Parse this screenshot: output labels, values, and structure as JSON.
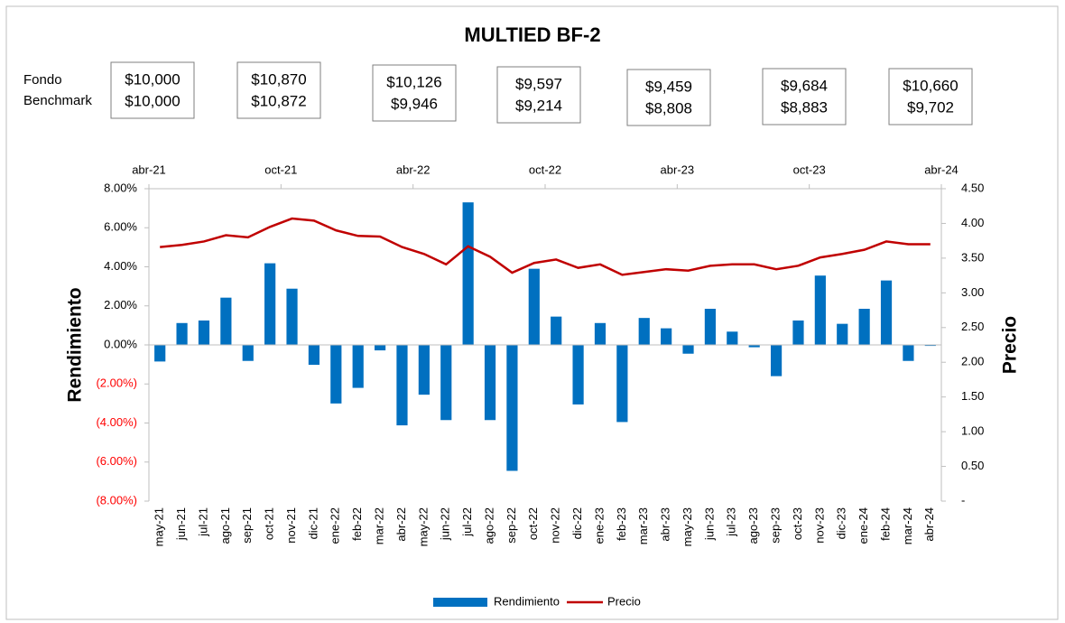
{
  "chart_data": {
    "type": "bar_line",
    "title": "MULTIED BF-2",
    "info_labels": {
      "fondo": "Fondo",
      "benchmark": "Benchmark"
    },
    "info_boxes": [
      {
        "fondo": "$10,000",
        "benchmark": "$10,000"
      },
      {
        "fondo": "$10,870",
        "benchmark": "$10,872"
      },
      {
        "fondo": "$10,126",
        "benchmark": "$9,946"
      },
      {
        "fondo": "$9,597",
        "benchmark": "$9,214"
      },
      {
        "fondo": "$9,459",
        "benchmark": "$8,808"
      },
      {
        "fondo": "$9,684",
        "benchmark": "$8,883"
      },
      {
        "fondo": "$10,660",
        "benchmark": "$9,702"
      }
    ],
    "top_axis_labels": [
      "abr-21",
      "oct-21",
      "abr-22",
      "oct-22",
      "abr-23",
      "oct-23",
      "abr-24"
    ],
    "categories": [
      "may-21",
      "jun-21",
      "jul-21",
      "ago-21",
      "sep-21",
      "oct-21",
      "nov-21",
      "dic-21",
      "ene-22",
      "feb-22",
      "mar-22",
      "abr-22",
      "may-22",
      "jun-22",
      "jul-22",
      "ago-22",
      "sep-22",
      "oct-22",
      "nov-22",
      "dic-22",
      "ene-23",
      "feb-23",
      "mar-23",
      "abr-23",
      "may-23",
      "jun-23",
      "jul-23",
      "ago-23",
      "sep-23",
      "oct-23",
      "nov-23",
      "dic-23",
      "ene-24",
      "feb-24",
      "mar-24",
      "abr-24"
    ],
    "series": [
      {
        "name": "Rendimiento",
        "type": "bar",
        "color": "#0070c0",
        "axis": "y",
        "values": [
          -0.85,
          1.12,
          1.25,
          2.42,
          -0.82,
          4.18,
          2.88,
          -1.02,
          -3.0,
          -2.2,
          -0.28,
          -4.12,
          -2.55,
          -3.85,
          7.3,
          -3.85,
          -6.45,
          3.9,
          1.45,
          -3.05,
          1.12,
          -3.95,
          1.38,
          0.85,
          -0.45,
          1.85,
          0.68,
          -0.12,
          -1.6,
          1.25,
          3.55,
          1.08,
          1.85,
          3.3,
          -0.82,
          -0.05
        ]
      },
      {
        "name": "Precio",
        "type": "line",
        "color": "#c00000",
        "axis": "y2",
        "values": [
          3.66,
          3.69,
          3.74,
          3.83,
          3.8,
          3.95,
          4.07,
          4.04,
          3.9,
          3.82,
          3.81,
          3.66,
          3.56,
          3.41,
          3.67,
          3.52,
          3.29,
          3.43,
          3.48,
          3.36,
          3.41,
          3.26,
          3.3,
          3.34,
          3.32,
          3.39,
          3.41,
          3.41,
          3.34,
          3.39,
          3.51,
          3.56,
          3.62,
          3.74,
          3.7,
          3.7
        ]
      }
    ],
    "ylabel": "Rendimiento",
    "y2label": "Precio",
    "ylim": [
      -8,
      8
    ],
    "yticks": [
      {
        "value": 8,
        "label": "8.00%"
      },
      {
        "value": 6,
        "label": "6.00%"
      },
      {
        "value": 4,
        "label": "4.00%"
      },
      {
        "value": 2,
        "label": "2.00%"
      },
      {
        "value": 0,
        "label": "0.00%"
      },
      {
        "value": -2,
        "label": "(2.00%)"
      },
      {
        "value": -4,
        "label": "(4.00%)"
      },
      {
        "value": -6,
        "label": "(6.00%)"
      },
      {
        "value": -8,
        "label": "(8.00%)"
      }
    ],
    "negative_tick_color": "#ff0000",
    "y2lim": [
      0,
      4.5
    ],
    "y2ticks": [
      {
        "value": 4.5,
        "label": "4.50"
      },
      {
        "value": 4,
        "label": "4.00"
      },
      {
        "value": 3.5,
        "label": "3.50"
      },
      {
        "value": 3,
        "label": "3.00"
      },
      {
        "value": 2.5,
        "label": "2.50"
      },
      {
        "value": 2,
        "label": "2.00"
      },
      {
        "value": 1.5,
        "label": "1.50"
      },
      {
        "value": 1,
        "label": "1.00"
      },
      {
        "value": 0.5,
        "label": "0.50"
      },
      {
        "value": 0,
        "label": "-"
      }
    ],
    "legend": "bottom"
  }
}
